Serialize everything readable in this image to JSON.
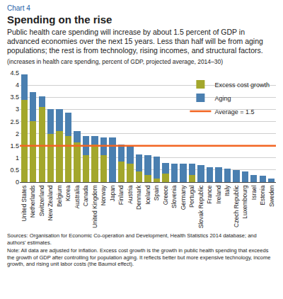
{
  "chart_data": {
    "type": "bar",
    "chart_number": "Chart 4",
    "title": "Spending on the rise",
    "subtitle": "Public health care spending will increase by about 1.5 percent of GDP in advanced economies over the next 15 years. Less than half will be from aging populations; the rest is from technology, rising incomes, and structural factors.",
    "y_label": "(increases in health care spending, percent of GDP, projected average, 2014–30)",
    "sources": "Sources: Organisation for Economic Co-operation and Development, Health Statistics 2014 database; and authors' estimates.",
    "note": "Note: All data are adjusted for inflation. Excess cost growth is the growth in public health spending that exceeds the growth of GDP after controlling for population aging. It reflects better but more expensive technology, income growth, and rising unit labor costs (the Baumol effect).",
    "categories": [
      "United States",
      "Netherlands",
      "Switzerland",
      "New Zealand",
      "Belgium",
      "Korea",
      "Australia",
      "Canada",
      "United Kingdom",
      "Norway",
      "Japan",
      "Finland",
      "Austria",
      "Denmark",
      "Iceland",
      "Spain",
      "Greece",
      "Slovenia",
      "Germany",
      "Portugal",
      "Slovak Republic",
      "France",
      "Ireland",
      "Italy",
      "Czech Republic",
      "Luxembourg",
      "Israel",
      "Estonia",
      "Sweden"
    ],
    "series": [
      {
        "name": "Excess cost growth",
        "color": "#a3a72c",
        "values": [
          3.4,
          2.5,
          3.1,
          2.0,
          2.1,
          1.9,
          1.65,
          1.1,
          1.55,
          1.1,
          0,
          0.85,
          0.75,
          0.45,
          0.3,
          0.15,
          0.35,
          0,
          0,
          0.3,
          0,
          0,
          0,
          0,
          0,
          0,
          0,
          0,
          0
        ]
      },
      {
        "name": "Aging",
        "color": "#4a7fb0",
        "values": [
          1.05,
          1.2,
          0.45,
          1.0,
          0.9,
          0.95,
          0.45,
          0.8,
          0.35,
          0.75,
          1.85,
          0.7,
          0.7,
          0.7,
          0.8,
          0.9,
          0.45,
          0.75,
          0.75,
          0.45,
          0.7,
          0.6,
          0.6,
          0.55,
          0.5,
          0.45,
          0.3,
          0.25,
          0.15
        ]
      }
    ],
    "reference_line": {
      "label": "Average = 1.5",
      "value": 1.5,
      "color": "#f26522"
    },
    "ylim": [
      0,
      4.5
    ],
    "yticks": [
      0,
      0.5,
      1,
      1.5,
      2,
      2.5,
      3,
      3.5,
      4,
      4.5
    ],
    "stacked": true,
    "grid": true,
    "legend": "upper right"
  }
}
